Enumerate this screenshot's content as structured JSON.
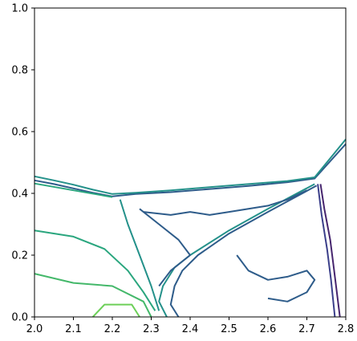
{
  "chart_data": {
    "type": "contour",
    "title": "",
    "xlabel": "",
    "ylabel": "",
    "xlim": [
      2.0,
      2.8
    ],
    "ylim": [
      0.0,
      1.0
    ],
    "x_ticks": [
      "2.0",
      "2.1",
      "2.2",
      "2.3",
      "2.4",
      "2.5",
      "2.6",
      "2.7",
      "2.8"
    ],
    "y_ticks": [
      "0.0",
      "0.2",
      "0.4",
      "0.6",
      "0.8",
      "1.0"
    ],
    "colormap": "viridis",
    "grid": false,
    "legend": "none",
    "colors": {
      "purple": "#46256e",
      "indigo": "#3b3f8a",
      "blue": "#2e5c8a",
      "teal_blue": "#2a7a8c",
      "teal": "#24918a",
      "green_teal": "#2aa67e",
      "green": "#44b86a",
      "light_green": "#6ccf58"
    },
    "series": [
      {
        "level": "blue",
        "points": [
          [
            2.0,
            0.442
          ],
          [
            2.05,
            0.43
          ],
          [
            2.1,
            0.416
          ],
          [
            2.15,
            0.402
          ],
          [
            2.2,
            0.39
          ],
          [
            2.26,
            0.398
          ],
          [
            2.35,
            0.404
          ],
          [
            2.45,
            0.414
          ],
          [
            2.55,
            0.424
          ],
          [
            2.65,
            0.436
          ],
          [
            2.72,
            0.448
          ],
          [
            2.8,
            0.56
          ]
        ]
      },
      {
        "level": "teal",
        "points": [
          [
            2.0,
            0.455
          ],
          [
            2.05,
            0.442
          ],
          [
            2.1,
            0.428
          ],
          [
            2.15,
            0.412
          ],
          [
            2.2,
            0.398
          ],
          [
            2.26,
            0.402
          ],
          [
            2.35,
            0.41
          ],
          [
            2.45,
            0.42
          ],
          [
            2.55,
            0.43
          ],
          [
            2.65,
            0.44
          ],
          [
            2.72,
            0.452
          ],
          [
            2.8,
            0.575
          ]
        ]
      },
      {
        "level": "green_teal",
        "points": [
          [
            2.0,
            0.432
          ],
          [
            2.1,
            0.41
          ],
          [
            2.2,
            0.388
          ]
        ]
      },
      {
        "level": "purple",
        "points": [
          [
            2.735,
            0.43
          ],
          [
            2.745,
            0.35
          ],
          [
            2.76,
            0.25
          ],
          [
            2.77,
            0.15
          ],
          [
            2.78,
            0.05
          ],
          [
            2.785,
            0.0
          ]
        ]
      },
      {
        "level": "indigo",
        "points": [
          [
            2.728,
            0.43
          ],
          [
            2.738,
            0.33
          ],
          [
            2.752,
            0.22
          ],
          [
            2.762,
            0.12
          ],
          [
            2.772,
            0.0
          ]
        ]
      },
      {
        "level": "teal",
        "points": [
          [
            2.72,
            0.43
          ],
          [
            2.6,
            0.35
          ],
          [
            2.5,
            0.28
          ],
          [
            2.4,
            0.2
          ],
          [
            2.36,
            0.16
          ],
          [
            2.33,
            0.1
          ],
          [
            2.32,
            0.05
          ],
          [
            2.34,
            0.0
          ]
        ]
      },
      {
        "level": "blue",
        "points": [
          [
            2.725,
            0.425
          ],
          [
            2.6,
            0.34
          ],
          [
            2.5,
            0.27
          ],
          [
            2.42,
            0.2
          ],
          [
            2.38,
            0.15
          ],
          [
            2.36,
            0.1
          ],
          [
            2.35,
            0.04
          ],
          [
            2.37,
            0.0
          ]
        ]
      },
      {
        "level": "blue",
        "points": [
          [
            2.27,
            0.35
          ],
          [
            2.32,
            0.3
          ],
          [
            2.37,
            0.25
          ],
          [
            2.4,
            0.2
          ],
          [
            2.35,
            0.15
          ],
          [
            2.32,
            0.1
          ]
        ]
      },
      {
        "level": "blue",
        "points": [
          [
            2.28,
            0.34
          ],
          [
            2.35,
            0.33
          ],
          [
            2.4,
            0.34
          ],
          [
            2.45,
            0.33
          ],
          [
            2.5,
            0.34
          ],
          [
            2.55,
            0.35
          ],
          [
            2.6,
            0.36
          ],
          [
            2.65,
            0.38
          ],
          [
            2.7,
            0.41
          ]
        ]
      },
      {
        "level": "blue",
        "points": [
          [
            2.52,
            0.2
          ],
          [
            2.55,
            0.15
          ],
          [
            2.6,
            0.12
          ],
          [
            2.65,
            0.13
          ],
          [
            2.7,
            0.15
          ],
          [
            2.72,
            0.12
          ],
          [
            2.7,
            0.08
          ],
          [
            2.65,
            0.05
          ],
          [
            2.6,
            0.06
          ]
        ]
      },
      {
        "level": "green",
        "points": [
          [
            2.0,
            0.14
          ],
          [
            2.1,
            0.11
          ],
          [
            2.2,
            0.1
          ],
          [
            2.28,
            0.05
          ],
          [
            2.3,
            0.0
          ]
        ]
      },
      {
        "level": "light_green",
        "points": [
          [
            2.15,
            0.0
          ],
          [
            2.18,
            0.04
          ],
          [
            2.25,
            0.04
          ],
          [
            2.27,
            0.0
          ]
        ]
      },
      {
        "level": "green_teal",
        "points": [
          [
            2.0,
            0.28
          ],
          [
            2.1,
            0.26
          ],
          [
            2.18,
            0.22
          ],
          [
            2.24,
            0.15
          ],
          [
            2.28,
            0.08
          ],
          [
            2.31,
            0.02
          ]
        ]
      },
      {
        "level": "teal",
        "points": [
          [
            2.22,
            0.38
          ],
          [
            2.24,
            0.3
          ],
          [
            2.27,
            0.2
          ],
          [
            2.3,
            0.1
          ],
          [
            2.32,
            0.02
          ]
        ]
      }
    ]
  }
}
